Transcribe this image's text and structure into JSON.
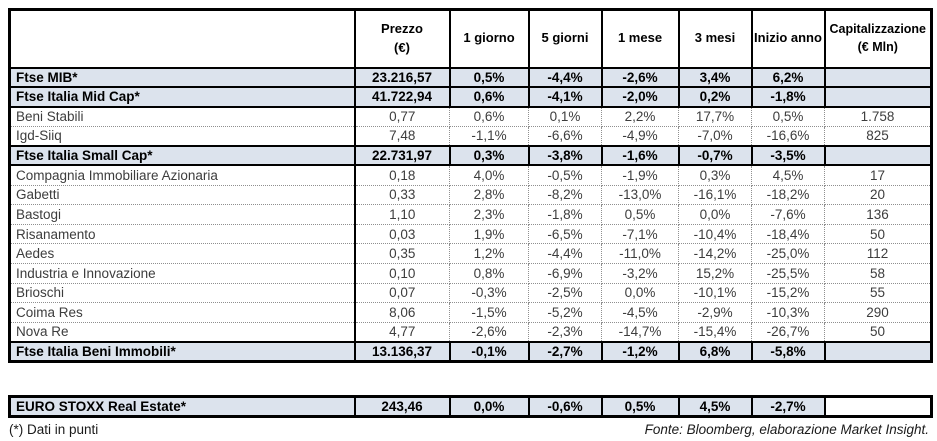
{
  "header": {
    "name_col": "",
    "cols": [
      {
        "label": "Prezzo",
        "sub": "(€)"
      },
      {
        "label": "1 giorno",
        "sub": ""
      },
      {
        "label": "5 giorni",
        "sub": ""
      },
      {
        "label": "1 mese",
        "sub": ""
      },
      {
        "label": "3 mesi",
        "sub": ""
      },
      {
        "label": "Inizio anno",
        "sub": ""
      },
      {
        "label": "Capitalizzazione",
        "sub": "(€ Mln)"
      }
    ]
  },
  "rows": [
    {
      "name": "Ftse MIB*",
      "type": "index",
      "values": [
        "23.216,57",
        "0,5%",
        "-4,4%",
        "-2,6%",
        "3,4%",
        "6,2%",
        ""
      ]
    },
    {
      "name": "Ftse Italia Mid Cap*",
      "type": "index",
      "values": [
        "41.722,94",
        "0,6%",
        "-4,1%",
        "-2,0%",
        "0,2%",
        "-1,8%",
        ""
      ]
    },
    {
      "name": "Beni Stabili",
      "type": "stock",
      "values": [
        "0,77",
        "0,6%",
        "0,1%",
        "2,2%",
        "17,7%",
        "0,5%",
        "1.758"
      ]
    },
    {
      "name": "Igd-Siiq",
      "type": "stock",
      "values": [
        "7,48",
        "-1,1%",
        "-6,6%",
        "-4,9%",
        "-7,0%",
        "-16,6%",
        "825"
      ]
    },
    {
      "name": "Ftse Italia Small Cap*",
      "type": "index",
      "values": [
        "22.731,97",
        "0,3%",
        "-3,8%",
        "-1,6%",
        "-0,7%",
        "-3,5%",
        ""
      ]
    },
    {
      "name": "Compagnia Immobiliare Azionaria",
      "type": "stock",
      "values": [
        "0,18",
        "4,0%",
        "-0,5%",
        "-1,9%",
        "0,3%",
        "4,5%",
        "17"
      ]
    },
    {
      "name": "Gabetti",
      "type": "stock",
      "values": [
        "0,33",
        "2,8%",
        "-8,2%",
        "-13,0%",
        "-16,1%",
        "-18,2%",
        "20"
      ]
    },
    {
      "name": "Bastogi",
      "type": "stock",
      "values": [
        "1,10",
        "2,3%",
        "-1,8%",
        "0,5%",
        "0,0%",
        "-7,6%",
        "136"
      ]
    },
    {
      "name": "Risanamento",
      "type": "stock",
      "values": [
        "0,03",
        "1,9%",
        "-6,5%",
        "-7,1%",
        "-10,4%",
        "-18,4%",
        "50"
      ]
    },
    {
      "name": "Aedes",
      "type": "stock",
      "values": [
        "0,35",
        "1,2%",
        "-4,4%",
        "-11,0%",
        "-14,2%",
        "-25,0%",
        "112"
      ]
    },
    {
      "name": "Industria e Innovazione",
      "type": "stock",
      "values": [
        "0,10",
        "0,8%",
        "-6,9%",
        "-3,2%",
        "15,2%",
        "-25,5%",
        "58"
      ]
    },
    {
      "name": "Brioschi",
      "type": "stock",
      "values": [
        "0,07",
        "-0,3%",
        "-2,5%",
        "0,0%",
        "-10,1%",
        "-15,2%",
        "55"
      ]
    },
    {
      "name": "Coima Res",
      "type": "stock",
      "values": [
        "8,06",
        "-1,5%",
        "-5,2%",
        "-4,5%",
        "-2,9%",
        "-10,3%",
        "290"
      ]
    },
    {
      "name": "Nova Re",
      "type": "stock",
      "values": [
        "4,77",
        "-2,6%",
        "-2,3%",
        "-14,7%",
        "-15,4%",
        "-26,7%",
        "50"
      ]
    },
    {
      "name": "Ftse Italia Beni Immobili*",
      "type": "index",
      "values": [
        "13.136,37",
        "-0,1%",
        "-2,7%",
        "-1,2%",
        "6,8%",
        "-5,8%",
        ""
      ]
    }
  ],
  "euro_row": {
    "name": "EURO STOXX Real Estate*",
    "type": "index",
    "values": [
      "243,46",
      "0,0%",
      "-0,6%",
      "0,5%",
      "4,5%",
      "-2,7%",
      ""
    ]
  },
  "footer": {
    "left": "(*) Dati in punti",
    "right": "Fonte: Bloomberg, elaborazione Market Insight."
  },
  "colors": {
    "highlight_row": "#dce3ed",
    "solid_border": "#000000",
    "dotted_border": "#8f8f8f"
  }
}
